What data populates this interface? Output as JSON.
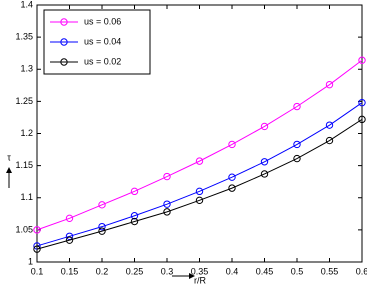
{
  "chart_data": {
    "type": "line",
    "x": [
      0.1,
      0.15,
      0.2,
      0.25,
      0.3,
      0.35,
      0.4,
      0.45,
      0.5,
      0.55,
      0.6
    ],
    "series": [
      {
        "name": "us = 0.06",
        "color": "#ff00ff",
        "values": [
          1.05,
          1.068,
          1.089,
          1.11,
          1.133,
          1.157,
          1.183,
          1.211,
          1.242,
          1.276,
          1.314
        ]
      },
      {
        "name": "us = 0.04",
        "color": "#0000ff",
        "values": [
          1.025,
          1.04,
          1.055,
          1.072,
          1.09,
          1.11,
          1.132,
          1.156,
          1.183,
          1.213,
          1.248
        ]
      },
      {
        "name": "us = 0.02",
        "color": "#000000",
        "values": [
          1.02,
          1.034,
          1.048,
          1.063,
          1.078,
          1.096,
          1.115,
          1.137,
          1.161,
          1.189,
          1.222
        ]
      }
    ],
    "xlim": [
      0.1,
      0.6
    ],
    "xticks": [
      0.1,
      0.15,
      0.2,
      0.25,
      0.3,
      0.35,
      0.4,
      0.45,
      0.5,
      0.55,
      0.6
    ],
    "ylim": [
      1,
      1.4
    ],
    "yticks": [
      1,
      1.05,
      1.1,
      1.15,
      1.2,
      1.25,
      1.3,
      1.35,
      1.4
    ],
    "xlabel": "r/R",
    "ylabel": "τ",
    "legend": "upper left",
    "grid": false
  }
}
